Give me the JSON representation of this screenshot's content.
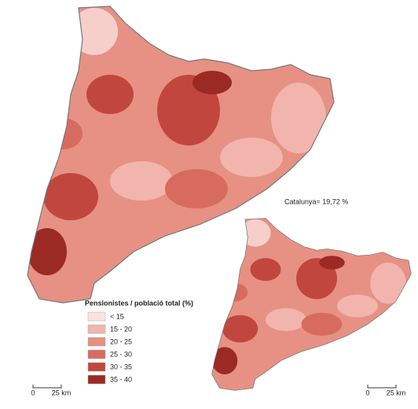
{
  "annotation": "Catalunya= 19,72 %",
  "legend": {
    "title": "Pensionistes / població total (%)",
    "items": [
      {
        "label": "< 15",
        "color": "#fbe1e1"
      },
      {
        "label": "15 - 20",
        "color": "#f1b5ad"
      },
      {
        "label": "20 - 25",
        "color": "#e69184"
      },
      {
        "label": "25 - 30",
        "color": "#d86b5f"
      },
      {
        "label": "30 - 35",
        "color": "#c1473e"
      },
      {
        "label": "35 - 40",
        "color": "#9c2a24"
      }
    ]
  },
  "scale_bars": [
    {
      "start": "0",
      "end": "25 km"
    },
    {
      "start": "0",
      "end": "25 km"
    }
  ]
}
